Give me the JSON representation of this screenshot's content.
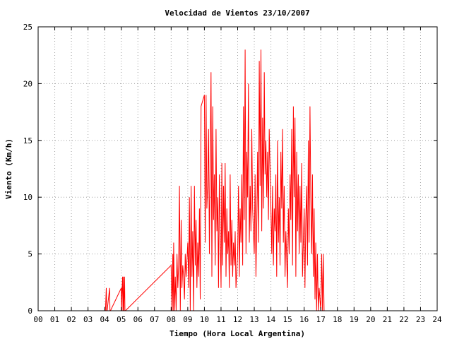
{
  "chart_data": {
    "type": "line",
    "title": "Velocidad de Vientos 23/10/2007",
    "xlabel": "Tiempo (Hora Local Argentina)",
    "ylabel": "Viento (Km/h)",
    "xlim": [
      0,
      24
    ],
    "ylim": [
      0,
      25
    ],
    "grid": true,
    "x_tick_labels": [
      "00",
      "01",
      "02",
      "03",
      "04",
      "05",
      "06",
      "07",
      "08",
      "09",
      "10",
      "11",
      "12",
      "13",
      "14",
      "15",
      "16",
      "17",
      "18",
      "19",
      "20",
      "21",
      "22",
      "23",
      "24"
    ],
    "y_ticks": [
      0,
      5,
      10,
      15,
      20,
      25
    ],
    "colors": {
      "series": "#ff0000",
      "grid": "#a0a0a0",
      "axis": "#000000"
    },
    "series": [
      {
        "x": [
          4.05,
          4.1,
          4.12,
          4.15,
          4.3,
          4.32,
          4.35,
          5.0,
          5.02,
          5.05,
          5.08,
          5.1,
          5.12,
          5.15,
          5.2,
          5.22,
          5.25,
          8.0,
          8.05,
          8.1,
          8.12,
          8.15,
          8.2,
          8.25,
          8.3,
          8.35,
          8.4,
          8.45,
          8.5,
          8.55,
          8.6,
          8.65,
          8.7,
          8.75,
          8.8,
          8.85,
          8.9,
          9.0,
          9.05,
          9.1,
          9.15,
          9.2,
          9.25,
          9.3,
          9.35,
          9.4,
          9.45,
          9.5,
          9.55,
          9.6,
          9.65,
          9.7,
          9.75,
          9.8,
          10.0,
          10.05,
          10.1,
          10.15,
          10.2,
          10.25,
          10.3,
          10.35,
          10.4,
          10.45,
          10.5,
          10.55,
          10.6,
          10.65,
          10.7,
          10.75,
          10.8,
          10.85,
          10.9,
          11.0,
          11.05,
          11.1,
          11.15,
          11.2,
          11.25,
          11.3,
          11.35,
          11.4,
          11.45,
          11.5,
          11.55,
          11.6,
          11.65,
          11.7,
          11.75,
          11.8,
          11.85,
          11.9,
          12.0,
          12.05,
          12.1,
          12.15,
          12.2,
          12.25,
          12.3,
          12.35,
          12.4,
          12.45,
          12.5,
          12.55,
          12.6,
          12.65,
          12.7,
          12.75,
          12.8,
          12.85,
          12.9,
          13.0,
          13.05,
          13.1,
          13.15,
          13.2,
          13.25,
          13.3,
          13.35,
          13.4,
          13.45,
          13.5,
          13.55,
          13.6,
          13.65,
          13.7,
          13.75,
          13.8,
          13.85,
          13.9,
          14.0,
          14.05,
          14.1,
          14.15,
          14.2,
          14.25,
          14.3,
          14.35,
          14.4,
          14.45,
          14.5,
          14.55,
          14.6,
          14.65,
          14.7,
          14.75,
          14.8,
          14.85,
          14.9,
          15.0,
          15.05,
          15.1,
          15.15,
          15.2,
          15.25,
          15.3,
          15.35,
          15.4,
          15.45,
          15.5,
          15.55,
          15.6,
          15.65,
          15.7,
          15.75,
          15.8,
          15.85,
          15.9,
          16.0,
          16.05,
          16.1,
          16.15,
          16.2,
          16.25,
          16.3,
          16.35,
          16.4,
          16.45,
          16.5,
          16.55,
          16.6,
          16.65,
          16.7,
          16.75,
          16.8,
          16.85,
          16.9,
          17.0,
          17.05,
          17.1,
          17.15,
          17.2
        ],
        "y": [
          0,
          2,
          0,
          0,
          2,
          0,
          0,
          2,
          0,
          2,
          3,
          0,
          3,
          0,
          3,
          0,
          0,
          4,
          0,
          5,
          0,
          6,
          0,
          3,
          0,
          5,
          2,
          4,
          11,
          0,
          8,
          2,
          4,
          3,
          1,
          5,
          3,
          6,
          2,
          10,
          0,
          11,
          3,
          7,
          0,
          11,
          4,
          8,
          2,
          6,
          3,
          9,
          1,
          18,
          19,
          6,
          19,
          9,
          11,
          16,
          5,
          14,
          21,
          3,
          18,
          8,
          12,
          4,
          16,
          7,
          10,
          2,
          12,
          2,
          13,
          4,
          11,
          6,
          13,
          3,
          9,
          5,
          7,
          2,
          12,
          4,
          8,
          3,
          6,
          4,
          7,
          2,
          5,
          11,
          3,
          9,
          6,
          12,
          4,
          18,
          8,
          23,
          5,
          14,
          10,
          20,
          6,
          11,
          7,
          16,
          9,
          5,
          12,
          3,
          8,
          14,
          6,
          22,
          11,
          23,
          7,
          17,
          9,
          21,
          12,
          15,
          10,
          14,
          8,
          16,
          9,
          5,
          11,
          4,
          9,
          7,
          12,
          3,
          15,
          6,
          10,
          4,
          14,
          9,
          16,
          6,
          11,
          3,
          7,
          2,
          9,
          5,
          12,
          8,
          16,
          4,
          18,
          10,
          17,
          3,
          14,
          7,
          12,
          5,
          11,
          6,
          13,
          3,
          9,
          2,
          8,
          11,
          4,
          15,
          6,
          18,
          10,
          5,
          12,
          3,
          9,
          1,
          6,
          0,
          5,
          0,
          2,
          0,
          5,
          0,
          5,
          0
        ]
      }
    ]
  }
}
